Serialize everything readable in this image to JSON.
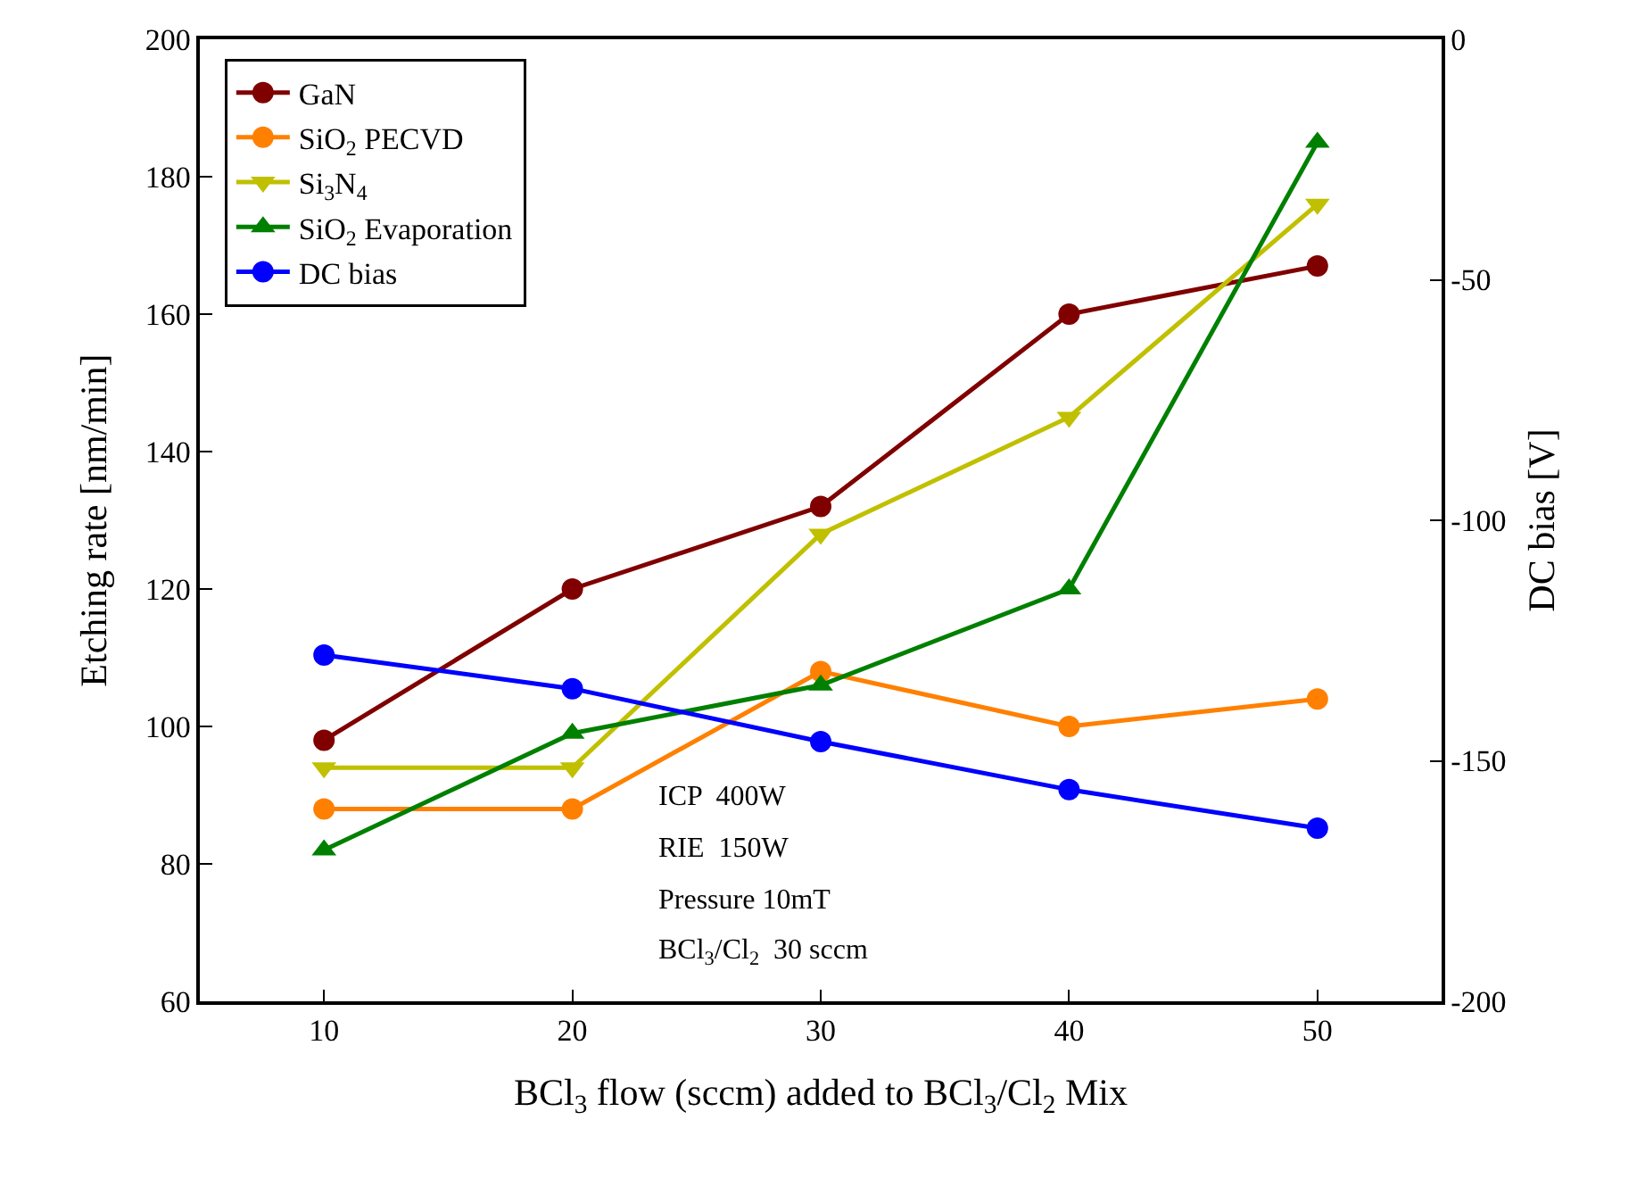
{
  "chart_data": {
    "type": "line",
    "xlabel": "BCl$_{3}$ flow (sccm) added to BCl$_{3}$/Cl$_{2}$ Mix",
    "ylabel": "Etching rate [nm/min]",
    "y2label": "DC bias [V]",
    "x": [
      10,
      20,
      30,
      40,
      50
    ],
    "series": [
      {
        "name": "GaN",
        "color": "#800000",
        "marker": "circle",
        "values": [
          98,
          120,
          132,
          160,
          167
        ]
      },
      {
        "name": "SiO$_{2}$ PECVD",
        "color": "#ff8000",
        "marker": "circle",
        "values": [
          88,
          88,
          108,
          100,
          104
        ]
      },
      {
        "name": "Si$_{3}$N$_{4}$",
        "color": "#c0c000",
        "marker": "triangle-down",
        "values": [
          94,
          94,
          128,
          145,
          176
        ]
      },
      {
        "name": "SiO$_{2}$ Evaporation",
        "color": "#008000",
        "marker": "triangle",
        "values": [
          82,
          99,
          106,
          120,
          185
        ]
      },
      {
        "name": "DC bias",
        "color": "#0000ff",
        "marker": "circle",
        "axis": "y2",
        "values": [
          -128,
          -135,
          -146,
          -156,
          -164
        ]
      }
    ],
    "xlim": [
      5,
      55
    ],
    "xticks": [
      10,
      20,
      30,
      40,
      50
    ],
    "ylim": [
      60,
      200
    ],
    "yticks": [
      60,
      80,
      100,
      120,
      140,
      160,
      180,
      200
    ],
    "y2lim": [
      -200,
      0
    ],
    "y2ticks": [
      -200,
      -150,
      -100,
      -50,
      0
    ],
    "annotations": [
      "ICP  400W",
      "RIE  150W",
      "Pressure 10mT",
      "BCl$_{3}$/Cl$_{2}$  30 sccm"
    ],
    "grid": false,
    "legend": "top left",
    "line_style": "solid"
  }
}
